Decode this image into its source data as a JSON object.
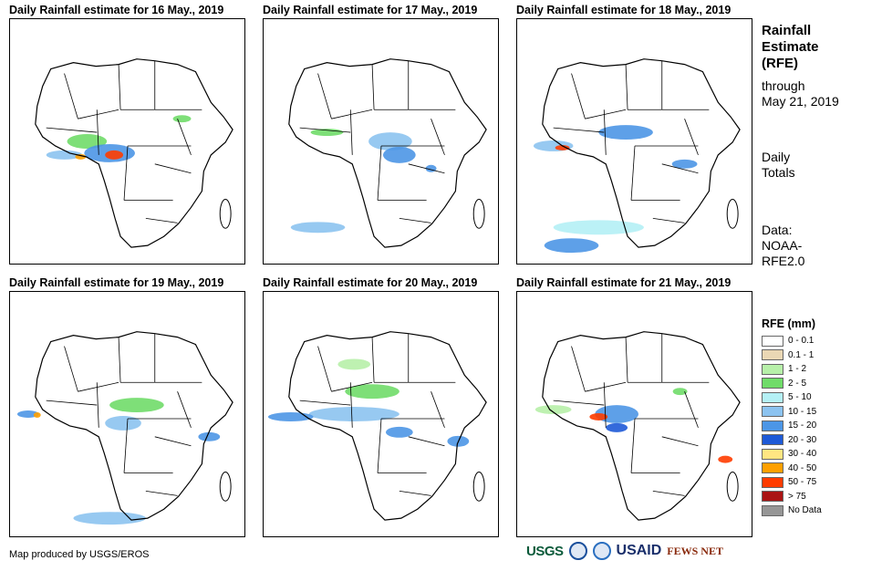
{
  "panels": [
    {
      "title": "Daily Rainfall estimate for 16 May., 2019"
    },
    {
      "title": "Daily Rainfall estimate for 17 May., 2019"
    },
    {
      "title": "Daily Rainfall estimate for 18 May., 2019"
    },
    {
      "title": "Daily Rainfall estimate for 19 May., 2019"
    },
    {
      "title": "Daily Rainfall estimate for 20 May., 2019"
    },
    {
      "title": "Daily Rainfall estimate for 21 May., 2019"
    }
  ],
  "sidebar": {
    "title_line1": "Rainfall",
    "title_line2": "Estimate",
    "title_line3": "(RFE)",
    "through_line1": "through",
    "through_line2": "May 21, 2019",
    "daily_line1": "Daily",
    "daily_line2": "Totals",
    "data_line1": "Data:",
    "data_line2": "NOAA-",
    "data_line3": "RFE2.0"
  },
  "legend": {
    "title": "RFE (mm)",
    "items": [
      {
        "label": "0 - 0.1",
        "color": "#ffffff"
      },
      {
        "label": "0.1 - 1",
        "color": "#ead7b4"
      },
      {
        "label": "1 - 2",
        "color": "#b7f0a9"
      },
      {
        "label": "2 - 5",
        "color": "#70dc69"
      },
      {
        "label": "5 - 10",
        "color": "#b4f0f5"
      },
      {
        "label": "10 - 15",
        "color": "#8cc3f0"
      },
      {
        "label": "15 - 20",
        "color": "#4c96e6"
      },
      {
        "label": "20 - 30",
        "color": "#1e5ad7"
      },
      {
        "label": "30 - 40",
        "color": "#ffe682"
      },
      {
        "label": "40 - 50",
        "color": "#ffa000"
      },
      {
        "label": "50 - 75",
        "color": "#ff3c00"
      },
      {
        "label": "> 75",
        "color": "#aa1414"
      },
      {
        "label": "No Data",
        "color": "#969696"
      }
    ]
  },
  "footer": {
    "credit": "Map produced by USGS/EROS"
  },
  "logos": {
    "usgs": "USGS",
    "usaid": "USAID",
    "fews": "FEWS NET"
  }
}
